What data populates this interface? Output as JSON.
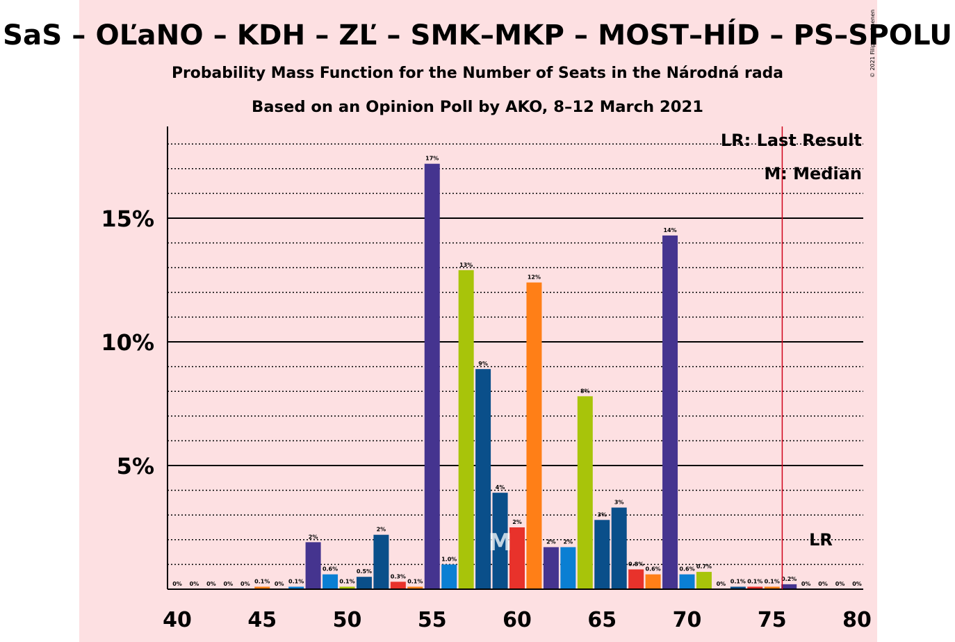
{
  "header": {
    "title": "SaS – OĽaNO – KDH – ZĽ – SMK–MKP – MOST–HÍD – PS–SPOLU",
    "subtitle1": "Probability Mass Function for the Number of Seats in the Národná rada",
    "subtitle2": "Based on an Opinion Poll by AKO, 8–12 March 2021",
    "copyright": "© 2021 Filip van Laenen"
  },
  "legend": {
    "last_result": "LR: Last Result",
    "median": "M: Median",
    "lr_marker": "LR",
    "median_marker": "M"
  },
  "colors": {
    "background_band": "#fde0e2",
    "last_result_line": "#d0021b"
  },
  "chart_data": {
    "type": "bar",
    "x": [
      40,
      41,
      42,
      43,
      44,
      45,
      46,
      47,
      48,
      49,
      50,
      51,
      52,
      53,
      54,
      55,
      56,
      57,
      58,
      59,
      60,
      61,
      62,
      63,
      64,
      65,
      66,
      67,
      68,
      69,
      70,
      71,
      72,
      73,
      74,
      75,
      76,
      77,
      78,
      79,
      80
    ],
    "values": [
      0,
      0,
      0,
      0,
      0,
      0.1,
      0,
      0.1,
      1.9,
      0.6,
      0.1,
      0.5,
      2.2,
      0.3,
      0.1,
      17.2,
      1.0,
      12.9,
      8.9,
      3.9,
      2.5,
      12.4,
      1.7,
      1.7,
      7.8,
      2.8,
      3.3,
      0.8,
      0.6,
      14.3,
      0.6,
      0.7,
      0,
      0.1,
      0.1,
      0.1,
      0.2,
      0,
      0,
      0,
      0
    ],
    "labels": [
      "0%",
      "0%",
      "0%",
      "0%",
      "0%",
      "0.1%",
      "0%",
      "0.1%",
      "2%",
      "0.6%",
      "0.1%",
      "0.5%",
      "2%",
      "0.3%",
      "0.1%",
      "17%",
      "1.0%",
      "13%",
      "9%",
      "4%",
      "2%",
      "12%",
      "2%",
      "2%",
      "8%",
      "3%",
      "3%",
      "0.8%",
      "0.6%",
      "14%",
      "0.6%",
      "0.7%",
      "0%",
      "0.1%",
      "0.1%",
      "0.1%",
      "0.2%",
      "0%",
      "0%",
      "0%",
      "0%"
    ],
    "colors": [
      "#45348f",
      "#0a7fd3",
      "#a8c40a",
      "#0a4f8a",
      "#e8322b",
      "#ff7f17",
      "#45348f",
      "#0a7fd3",
      "#45348f",
      "#0a7fd3",
      "#a8c40a",
      "#0a4f8a",
      "#0a4f8a",
      "#e8322b",
      "#ff7f17",
      "#45348f",
      "#0a7fd3",
      "#a8c40a",
      "#0a4f8a",
      "#0a4f8a",
      "#e8322b",
      "#ff7f17",
      "#45348f",
      "#0a7fd3",
      "#a8c40a",
      "#0a4f8a",
      "#0a4f8a",
      "#e8322b",
      "#ff7f17",
      "#45348f",
      "#0a7fd3",
      "#a8c40a",
      "#0a4f8a",
      "#0a4f8a",
      "#e8322b",
      "#ff7f17",
      "#45348f",
      "#0a7fd3",
      "#a8c40a",
      "#0a4f8a",
      "#0a4f8a"
    ],
    "xticks": [
      40,
      45,
      50,
      55,
      60,
      65,
      70,
      75,
      80
    ],
    "yticks": [
      5,
      10,
      15
    ],
    "ytick_labels": [
      "5%",
      "10%",
      "15%"
    ],
    "ylim": [
      0,
      19
    ],
    "grid": "dotted minor every 1%, solid major every 5%",
    "median_seat": 59,
    "last_result_seat": 75.6,
    "legend_position": "top-right"
  }
}
